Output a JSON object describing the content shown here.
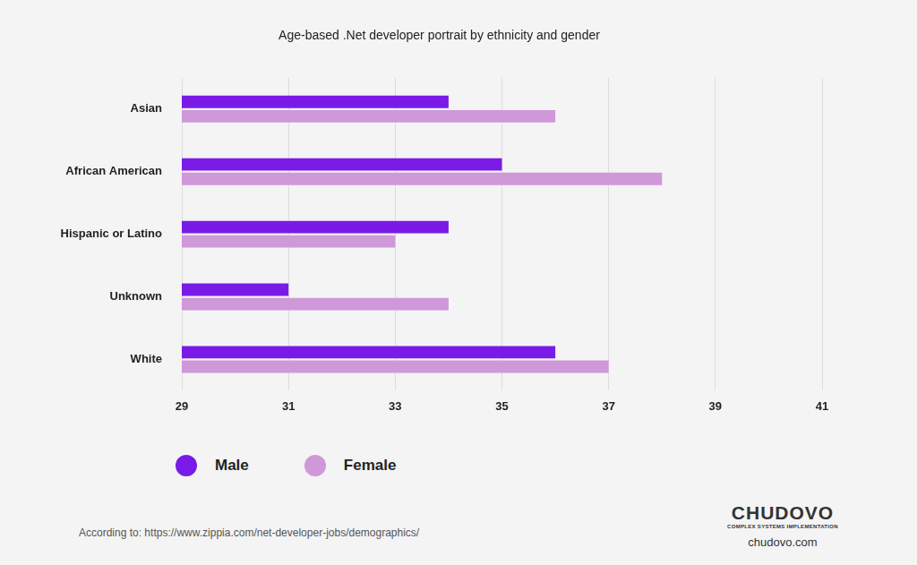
{
  "chart_data": {
    "type": "bar",
    "orientation": "horizontal",
    "title": "Age-based .Net developer portrait by ethnicity and gender",
    "categories": [
      "Asian",
      "African American",
      "Hispanic or Latino",
      "Unknown",
      "White"
    ],
    "series": [
      {
        "name": "Male",
        "color": "#7a1ae6",
        "values": [
          34,
          35,
          34,
          31,
          36
        ]
      },
      {
        "name": "Female",
        "color": "#cf98d9",
        "values": [
          36,
          38,
          33,
          34,
          37
        ]
      }
    ],
    "xlim": [
      29,
      41
    ],
    "xticks": [
      29,
      31,
      33,
      35,
      37,
      39,
      41
    ],
    "grid": true,
    "legend": "bottom left",
    "annotations": [
      "According to:  https://www.zippia.com/net-developer-jobs/demographics/",
      "CHUDOVO",
      "COMPLEX SYSTEMS IMPLEMENTATION",
      "chudovo.com"
    ]
  }
}
